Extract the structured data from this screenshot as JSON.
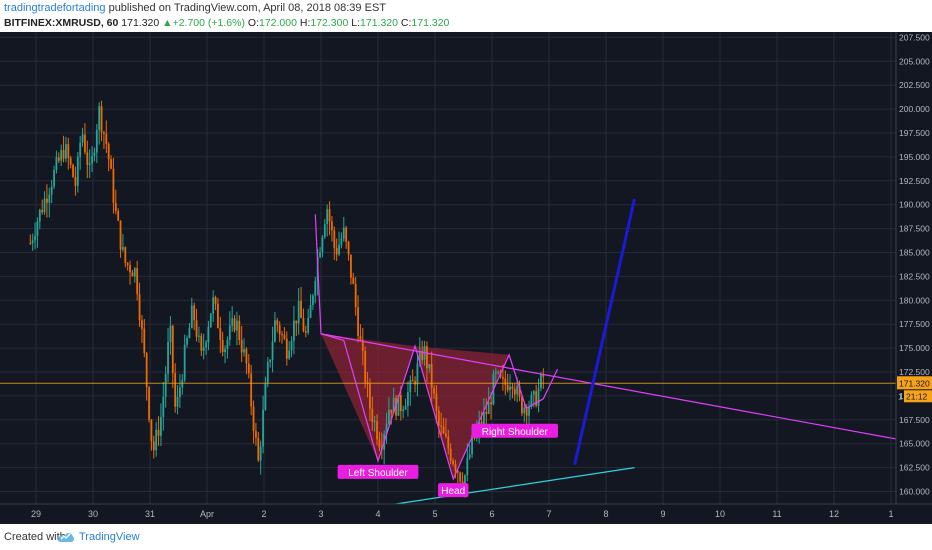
{
  "header": {
    "author": "tradingtradefortading",
    "published_text": " published on TradingView.com, April 08, 2018 08:39 EST",
    "symbol": "BITFINEX:XMRUSD, 60",
    "last": "171.320",
    "change_arrow": "▲",
    "change": "+2.700 (+1.6%)",
    "o_label": "O:",
    "o_val": "172.000",
    "h_label": "H:",
    "h_val": "172.300",
    "l_label": "L:",
    "l_val": "171.320",
    "c_label": "C:",
    "c_val": "171.320"
  },
  "footer": {
    "created_with": "Created with",
    "brand": "TradingView"
  },
  "colors": {
    "background": "#131722",
    "grid": "#262b38",
    "up": "#26a69a",
    "down": "#ef6c00",
    "pattern": "#e040fb",
    "fill": "#8b2434",
    "support": "#2fd3e0",
    "trendline": "#1a1ad8",
    "price_line": "#f7a21b",
    "label_bg": "#e91ee0"
  },
  "chart_data": {
    "type": "candlestick",
    "title": "",
    "x_ticks": [
      "29",
      "30",
      "31",
      "Apr",
      "2",
      "3",
      "4",
      "5",
      "6",
      "7",
      "8",
      "9",
      "10",
      "11",
      "12",
      "1"
    ],
    "y_ticks": [
      "207.500",
      "205.000",
      "202.500",
      "200.000",
      "197.500",
      "195.000",
      "192.500",
      "190.000",
      "187.500",
      "185.000",
      "182.500",
      "180.000",
      "177.500",
      "175.000",
      "172.500",
      "170.000",
      "167.500",
      "165.000",
      "162.500",
      "160.000"
    ],
    "ylim": [
      158.5,
      207.5
    ],
    "current_price": "171.320",
    "countdown_label": "21:12",
    "y_axis_digit": "1",
    "price_path": [
      [
        -0.1,
        186
      ],
      [
        0,
        188
      ],
      [
        0.3,
        193
      ],
      [
        0.5,
        196
      ],
      [
        0.7,
        192
      ],
      [
        0.8,
        198
      ],
      [
        0.95,
        193
      ],
      [
        1.1,
        200
      ],
      [
        1.25,
        196
      ],
      [
        1.4,
        189
      ],
      [
        1.55,
        184
      ],
      [
        1.75,
        183
      ],
      [
        1.9,
        174
      ],
      [
        2.05,
        164
      ],
      [
        2.2,
        168
      ],
      [
        2.35,
        177
      ],
      [
        2.45,
        168
      ],
      [
        2.6,
        174
      ],
      [
        2.75,
        179
      ],
      [
        2.9,
        174
      ],
      [
        3.1,
        180
      ],
      [
        3.3,
        175
      ],
      [
        3.5,
        178
      ],
      [
        3.7,
        173
      ],
      [
        3.9,
        163
      ],
      [
        4.05,
        172
      ],
      [
        4.2,
        178
      ],
      [
        4.4,
        175
      ],
      [
        4.6,
        179
      ],
      [
        4.75,
        176
      ],
      [
        4.9,
        183
      ],
      [
        5.1,
        190
      ],
      [
        5.25,
        185
      ],
      [
        5.4,
        187
      ],
      [
        5.55,
        182
      ],
      [
        5.7,
        175
      ],
      [
        5.85,
        169
      ],
      [
        6.05,
        165
      ],
      [
        6.2,
        169
      ],
      [
        6.4,
        169
      ],
      [
        6.6,
        171
      ],
      [
        6.8,
        175
      ],
      [
        6.95,
        171
      ],
      [
        7.05,
        167
      ],
      [
        7.2,
        165
      ],
      [
        7.35,
        163
      ],
      [
        7.5,
        161
      ],
      [
        7.65,
        165
      ],
      [
        7.8,
        167
      ],
      [
        7.95,
        169
      ],
      [
        8.05,
        172
      ],
      [
        8.2,
        171
      ],
      [
        8.35,
        172
      ],
      [
        8.5,
        169
      ],
      [
        8.6,
        169
      ],
      [
        8.75,
        169.5
      ],
      [
        8.9,
        172
      ]
    ],
    "annotations": [
      {
        "text": "Left Shoulder"
      },
      {
        "text": "Head"
      },
      {
        "text": "Right Shoulder"
      }
    ],
    "inverse_head_shoulders": [
      [
        5.4,
        175.8
      ],
      [
        6.0,
        163.2
      ],
      [
        6.65,
        175.2
      ],
      [
        7.32,
        161.3
      ],
      [
        8.3,
        174.3
      ],
      [
        8.6,
        168.7
      ],
      [
        8.9,
        169.7
      ],
      [
        9.15,
        172.8
      ]
    ],
    "neckline": {
      "from": [
        5.0,
        176.5
      ],
      "to": [
        10.5,
        170.5
      ]
    },
    "support_line": {
      "from": [
        5.0,
        157.5
      ],
      "to": [
        10.5,
        162.5
      ]
    },
    "trend_line": {
      "from": [
        9.45,
        162.8
      ],
      "to": [
        10.5,
        190.6
      ]
    }
  }
}
